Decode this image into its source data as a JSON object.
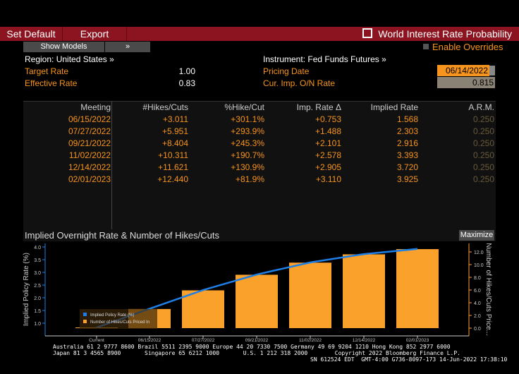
{
  "toolbar": {
    "set_default": "Set Default",
    "export": "Export",
    "title": "World Interest Rate Probability"
  },
  "controls": {
    "show_models": "Show Models",
    "expand": "»",
    "enable_overrides": "Enable Overrides"
  },
  "info": {
    "region": "Region: United States »",
    "instrument": "Instrument: Fed Funds Futures »",
    "target_rate_label": "Target Rate",
    "target_rate": "1.00",
    "effective_rate_label": "Effective Rate",
    "effective_rate": "0.83",
    "pricing_date_label": "Pricing Date",
    "pricing_date": "06/14/2022",
    "cur_imp_label": "Cur. Imp. O/N Rate",
    "cur_imp": "0.815"
  },
  "table": {
    "headers": [
      "Meeting",
      "#Hikes/Cuts",
      "%Hike/Cut",
      "Imp. Rate Δ",
      "Implied Rate",
      "A.R.M."
    ],
    "rows": [
      [
        "06/15/2022",
        "+3.011",
        "+301.1%",
        "+0.753",
        "1.568",
        "0.250"
      ],
      [
        "07/27/2022",
        "+5.951",
        "+293.9%",
        "+1.488",
        "2.303",
        "0.250"
      ],
      [
        "09/21/2022",
        "+8.404",
        "+245.3%",
        "+2.101",
        "2.916",
        "0.250"
      ],
      [
        "11/02/2022",
        "+10.311",
        "+190.7%",
        "+2.578",
        "3.393",
        "0.250"
      ],
      [
        "12/14/2022",
        "+11.621",
        "+130.9%",
        "+2.905",
        "3.720",
        "0.250"
      ],
      [
        "02/01/2023",
        "+12.440",
        "+81.9%",
        "+3.110",
        "3.925",
        "0.250"
      ]
    ]
  },
  "chart_data": {
    "type": "bar",
    "title": "Implied Overnight Rate & Number of Hikes/Cuts",
    "maximize": "Maximize",
    "categories": [
      "Current",
      "06/15/2022",
      "07/27/2022",
      "09/21/2022",
      "11/02/2022",
      "12/14/2022",
      "02/01/2023"
    ],
    "series": [
      {
        "name": "Implied Policy Rate (%)",
        "type": "line",
        "axis": "left",
        "color": "#1e7fe6",
        "values": [
          0.83,
          1.568,
          2.303,
          2.916,
          3.393,
          3.72,
          3.925
        ]
      },
      {
        "name": "Number of Hikes/Cuts Priced In",
        "type": "bar",
        "axis": "right",
        "color": "#f9a12b",
        "values": [
          0,
          3.011,
          5.951,
          8.404,
          10.311,
          11.621,
          12.44
        ]
      }
    ],
    "ylabel": "Implied Policy Rate (%)",
    "y2label": "Number of Hikes/Cuts Price...",
    "yticks": [
      "1.0",
      "1.5",
      "2.0",
      "2.5",
      "3.0",
      "3.5",
      "4.0"
    ],
    "y2ticks": [
      "0.0",
      "2.0",
      "4.0",
      "6.0",
      "8.0",
      "10.0",
      "12.0"
    ]
  },
  "footer": {
    "line1": "Australia 61 2 9777 8600 Brazil 5511 2395 9000 Europe 44 20 7330 7500 Germany 49 69 9204 1210 Hong Kong 852 2977 6000",
    "line2": "Japan 81 3 4565 8900       Singapore 65 6212 1000       U.S. 1 212 318 2000        Copyright 2022 Bloomberg Finance L.P.",
    "line3": "SN 612524 EDT  GMT-4:00 G736-8097-173 14-Jun-2022 17:38:10"
  }
}
